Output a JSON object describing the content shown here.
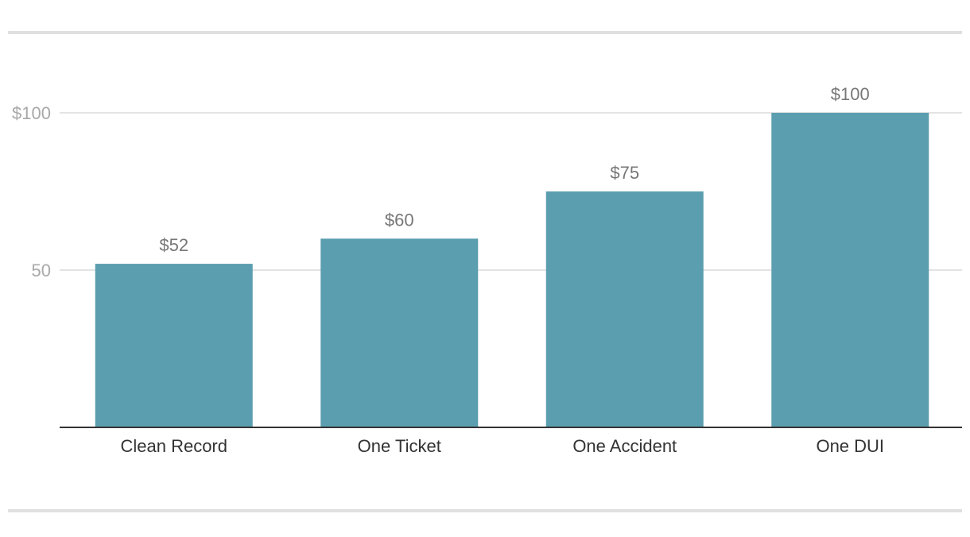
{
  "chart_data": {
    "type": "bar",
    "title": "",
    "xlabel": "",
    "ylabel": "",
    "categories": [
      "Clean Record",
      "One Ticket",
      "One Accident",
      "One DUI"
    ],
    "values": [
      52,
      60,
      75,
      100
    ],
    "value_labels": [
      "$52",
      "$60",
      "$75",
      "$100"
    ],
    "ylim": [
      0,
      100
    ],
    "y_ticks": [
      {
        "value": 50,
        "label": "50"
      },
      {
        "value": 100,
        "label": "$100"
      }
    ],
    "grid": true,
    "legend": "none",
    "colors": {
      "bar": "#5b9eaf",
      "grid": "#e3e3e3",
      "axis": "#333333"
    }
  }
}
